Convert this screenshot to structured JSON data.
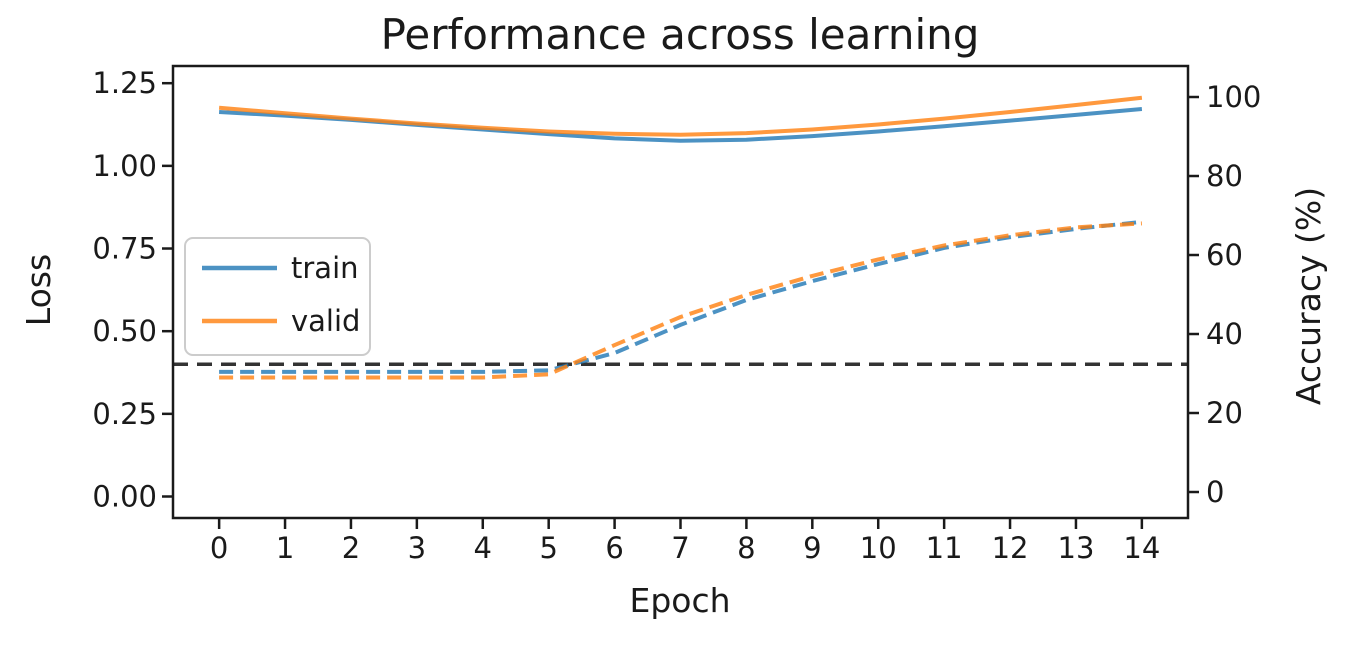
{
  "chart_data": {
    "type": "line",
    "title": "Performance across learning",
    "xlabel": "Epoch",
    "ylabel_left": "Loss",
    "ylabel_right": "Accuracy (%)",
    "x": [
      0,
      1,
      2,
      3,
      4,
      5,
      6,
      7,
      8,
      9,
      10,
      11,
      12,
      13,
      14
    ],
    "x_tick_labels": [
      "0",
      "1",
      "2",
      "3",
      "4",
      "5",
      "6",
      "7",
      "8",
      "9",
      "10",
      "11",
      "12",
      "13",
      "14"
    ],
    "left_tick_labels": [
      "0.00",
      "0.25",
      "0.50",
      "0.75",
      "1.00",
      "1.25"
    ],
    "left_tick_values": [
      0,
      0.25,
      0.5,
      0.75,
      1.0,
      1.25
    ],
    "right_tick_labels": [
      "0",
      "20",
      "40",
      "60",
      "80",
      "100"
    ],
    "right_tick_values": [
      0,
      20,
      40,
      60,
      80,
      100
    ],
    "axis_ranges": {
      "x": [
        -0.7,
        14.7
      ],
      "left": [
        -0.065,
        1.302
      ],
      "right": [
        -6.58,
        107.85
      ]
    },
    "grid": false,
    "legend": {
      "position": "center-left",
      "entries": [
        "train",
        "valid"
      ]
    },
    "series": [
      {
        "name": "train",
        "axis": "left",
        "style": "solid",
        "color": "rgba(31,119,180,0.8)",
        "values": [
          1.163,
          1.152,
          1.139,
          1.124,
          1.11,
          1.096,
          1.083,
          1.076,
          1.079,
          1.09,
          1.104,
          1.12,
          1.137,
          1.154,
          1.172
        ]
      },
      {
        "name": "valid",
        "axis": "left",
        "style": "solid",
        "color": "rgba(255,127,14,0.8)",
        "values": [
          1.176,
          1.159,
          1.143,
          1.128,
          1.115,
          1.104,
          1.097,
          1.094,
          1.099,
          1.11,
          1.125,
          1.143,
          1.163,
          1.184,
          1.206
        ]
      },
      {
        "name": "train",
        "axis": "right",
        "style": "dashed",
        "color": "rgba(31,119,180,0.8)",
        "values": [
          30.4,
          30.4,
          30.4,
          30.4,
          30.4,
          30.8,
          35.2,
          42.3,
          48.6,
          53.4,
          57.7,
          61.8,
          64.5,
          66.6,
          68.4
        ]
      },
      {
        "name": "valid",
        "axis": "right",
        "style": "dashed",
        "color": "rgba(255,127,14,0.8)",
        "values": [
          29.0,
          29.0,
          29.0,
          29.0,
          29.0,
          29.8,
          37.2,
          44.3,
          49.9,
          54.7,
          58.9,
          62.4,
          65.0,
          67.0,
          68.0
        ]
      }
    ],
    "reference_line": {
      "axis": "left",
      "value": 0.4,
      "style": "dashed",
      "color": "#333333"
    }
  }
}
